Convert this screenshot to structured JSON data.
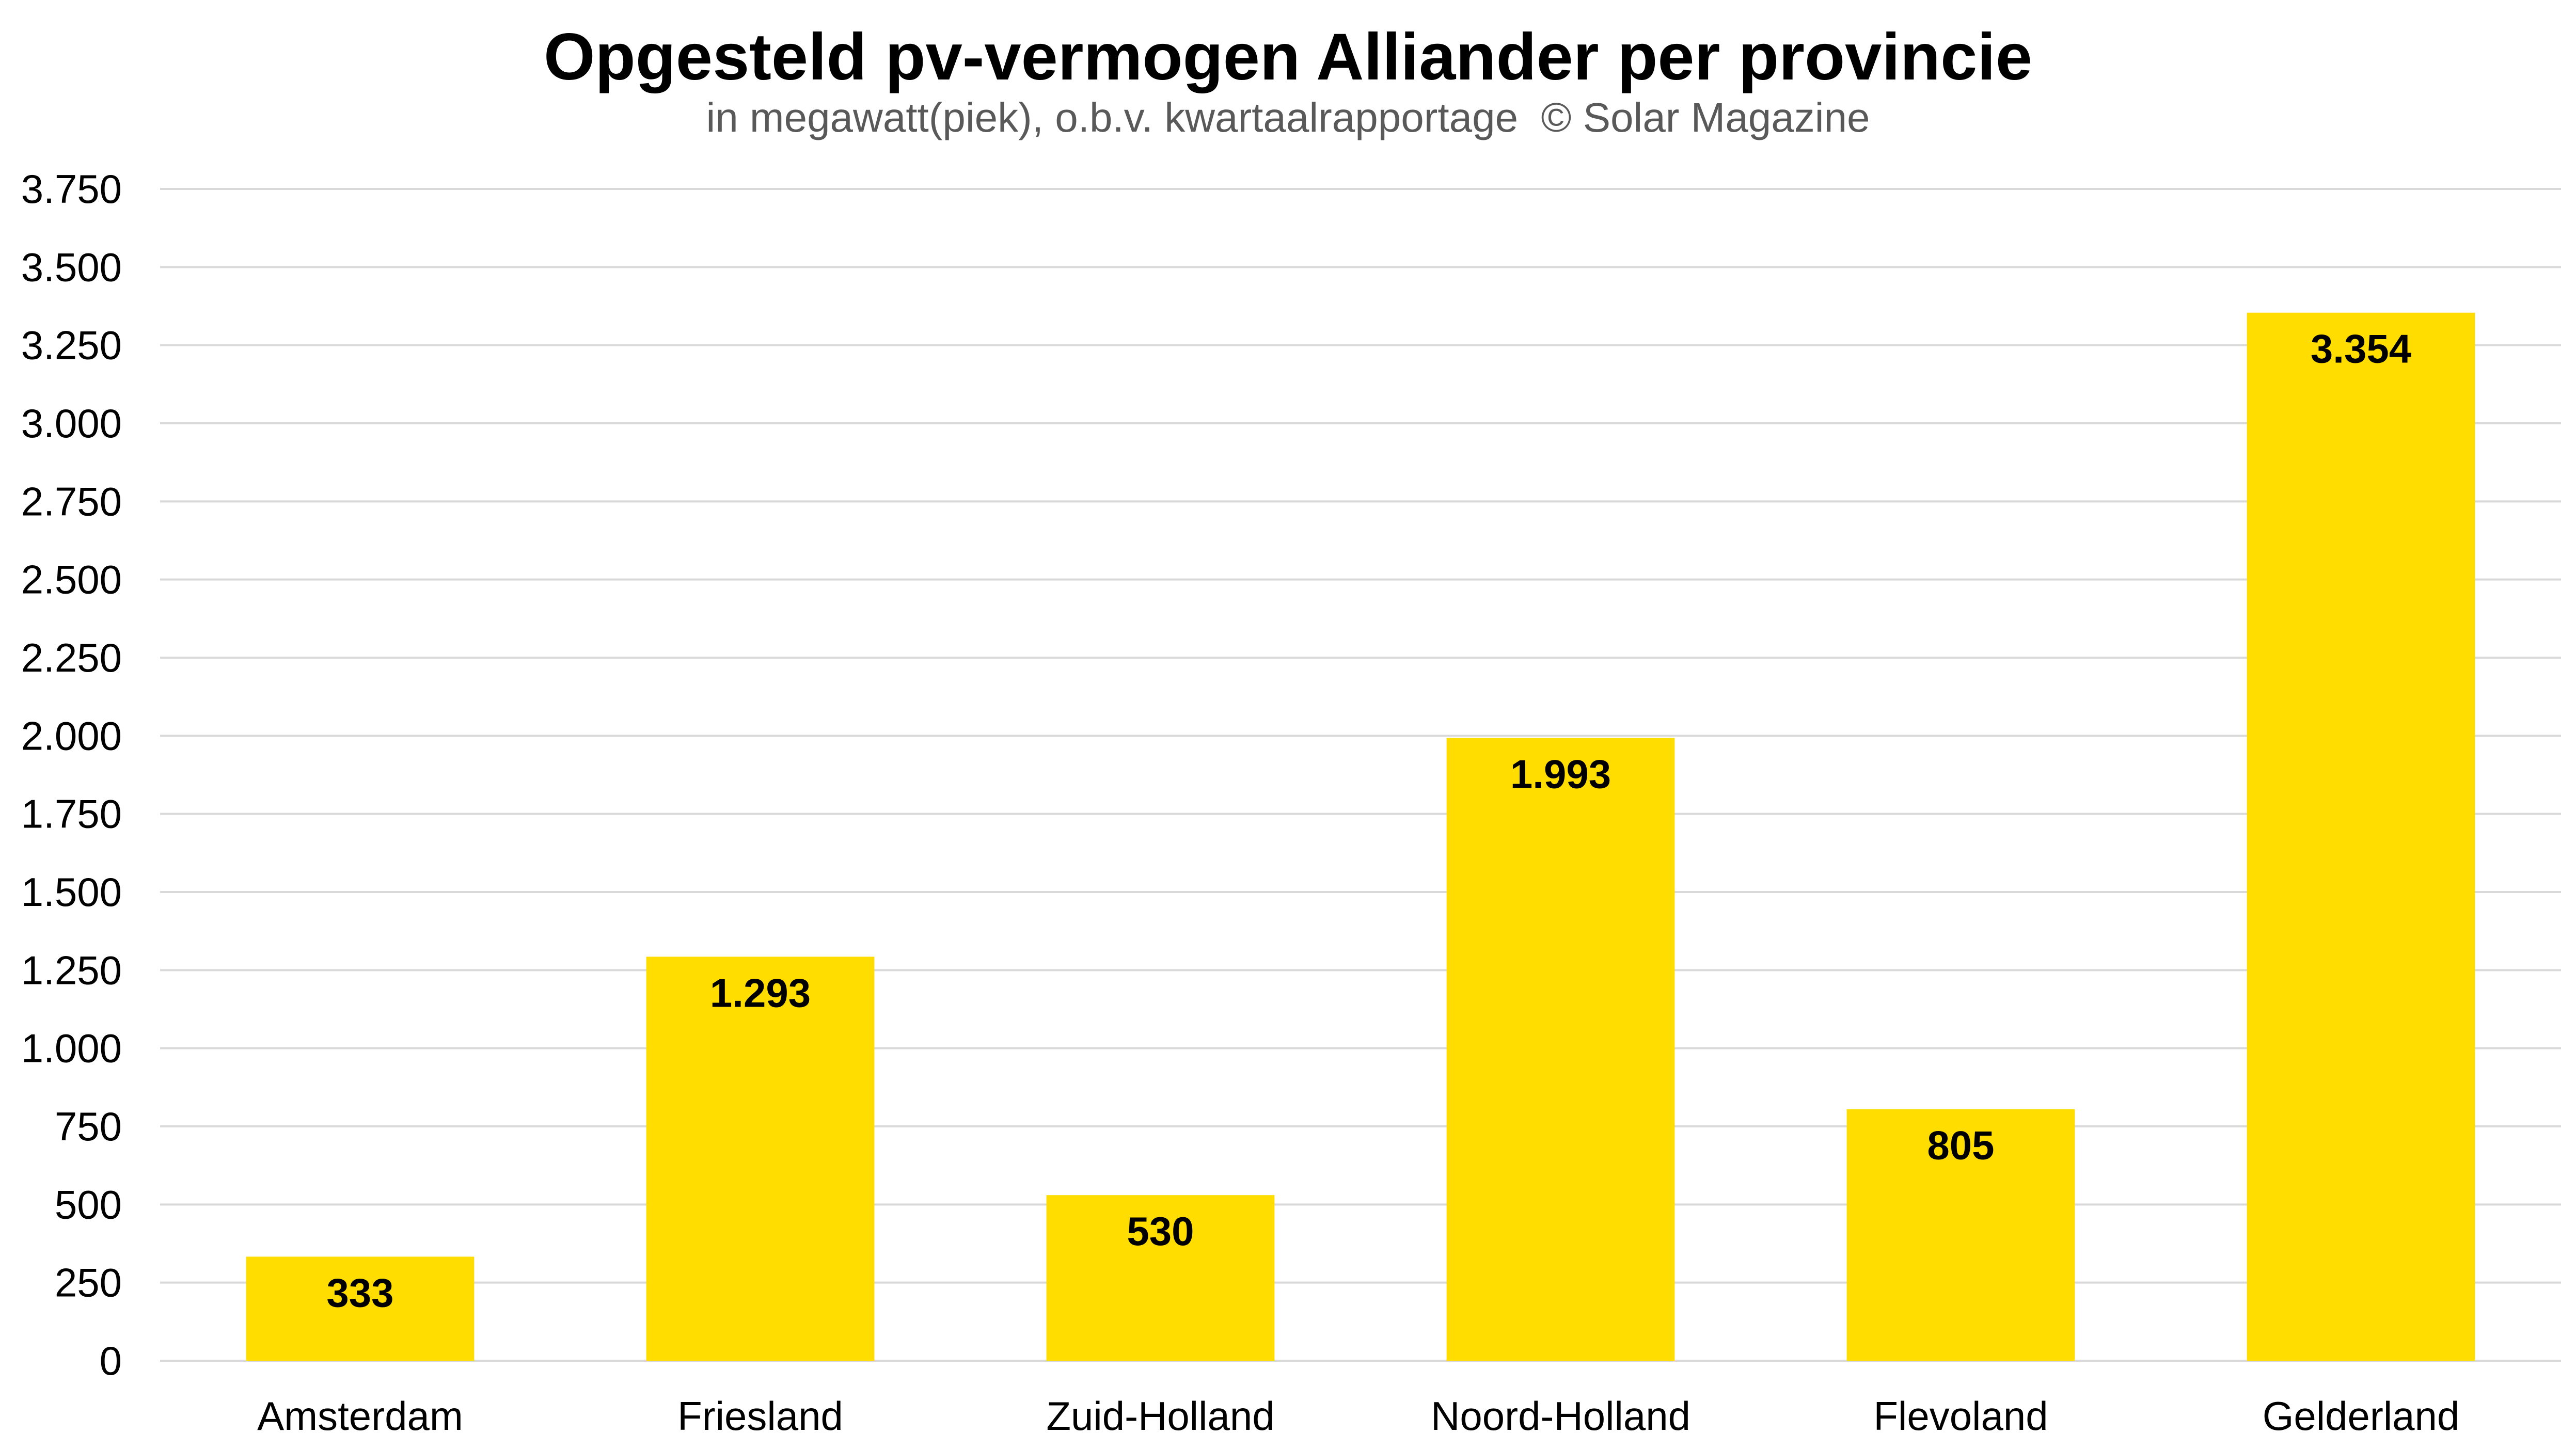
{
  "title": "Opgesteld pv-vermogen Alliander per provincie",
  "subtitle": {
    "unit_note": "in megawatt(piek), o.b.v. kwartaalrapportage",
    "copyright": "© Solar Magazine"
  },
  "colors": {
    "bar": "#FFDD00",
    "grid": "#D9D9D9",
    "text": "#000000",
    "subtitle": "#595959"
  },
  "chart_data": {
    "type": "bar",
    "title": "Opgesteld pv-vermogen Alliander per provincie",
    "subtitle": "in megawatt(piek), o.b.v. kwartaalrapportage  © Solar Magazine",
    "xlabel": "",
    "ylabel": "",
    "categories": [
      "Amsterdam",
      "Friesland",
      "Zuid-Holland",
      "Noord-Holland",
      "Flevoland",
      "Gelderland"
    ],
    "values": [
      333,
      1293,
      530,
      1993,
      805,
      3354
    ],
    "data_labels": [
      "333",
      "1.293",
      "530",
      "1.993",
      "805",
      "3.354"
    ],
    "ylim": [
      0,
      3750
    ],
    "yticks": [
      0,
      250,
      500,
      750,
      1000,
      1250,
      1500,
      1750,
      2000,
      2250,
      2500,
      2750,
      3000,
      3250,
      3500,
      3750
    ],
    "ytick_labels": [
      "0",
      "250",
      "500",
      "750",
      "1.000",
      "1.250",
      "1.500",
      "1.750",
      "2.000",
      "2.250",
      "2.500",
      "2.750",
      "3.000",
      "3.250",
      "3.500",
      "3.750"
    ],
    "grid": true,
    "legend": "none"
  }
}
